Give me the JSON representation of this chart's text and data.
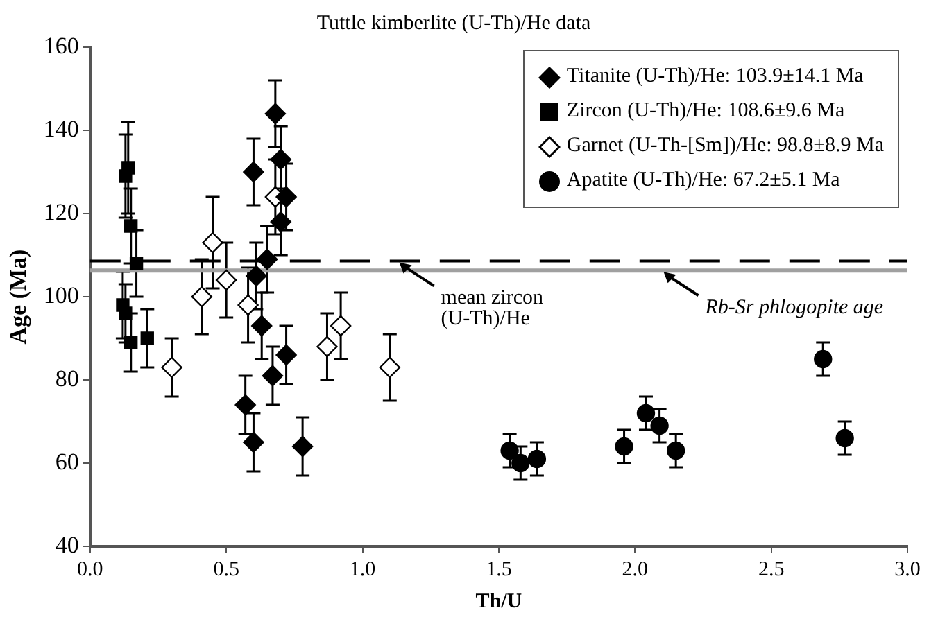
{
  "chart_data": {
    "type": "scatter",
    "title": "Tuttle kimberlite (U-Th)/He data",
    "xlabel": "Th/U",
    "ylabel": "Age (Ma)",
    "xlim": [
      0,
      3
    ],
    "xticks": [
      {
        "value": 0,
        "label": "0.0"
      },
      {
        "value": 0.5,
        "label": "0.5"
      },
      {
        "value": 1,
        "label": "1.0"
      },
      {
        "value": 1.5,
        "label": "1.5"
      },
      {
        "value": 2,
        "label": "2.0"
      },
      {
        "value": 2.5,
        "label": "2.5"
      },
      {
        "value": 3,
        "label": "3.0"
      }
    ],
    "ylim": [
      40,
      160
    ],
    "yticks": [
      40,
      60,
      80,
      100,
      120,
      140,
      160
    ],
    "grid": false,
    "legend": "top right",
    "series": [
      {
        "name": "Titanite (U-Th)/He: 103.9±14.1 Ma",
        "color": "#000000",
        "marker": "diamond",
        "x": [
          0.6,
          0.68,
          0.7,
          0.72,
          0.7,
          0.65,
          0.61,
          0.63,
          0.72,
          0.67,
          0.57,
          0.6,
          0.78
        ],
        "values": [
          130,
          144,
          133,
          124,
          118,
          109,
          105,
          93,
          86,
          81,
          74,
          65,
          64
        ],
        "errors": [
          8,
          8,
          8,
          8,
          8,
          8,
          8,
          8,
          7,
          7,
          7,
          7,
          7
        ]
      },
      {
        "name": "Zircon (U-Th)/He: 108.6±9.6 Ma",
        "color": "#000000",
        "marker": "square",
        "x": [
          0.13,
          0.14,
          0.15,
          0.17,
          0.12,
          0.13,
          0.15,
          0.21
        ],
        "values": [
          129,
          131,
          117,
          108,
          98,
          96,
          89,
          90
        ],
        "errors": [
          10,
          11,
          9,
          8,
          8,
          7,
          7,
          7
        ]
      },
      {
        "name": "Garnet (U-Th-[Sm])/He: 98.8±8.9 Ma",
        "color": "#ffffff",
        "marker": "diamond",
        "x": [
          0.3,
          0.41,
          0.45,
          0.5,
          0.58,
          0.68,
          0.87,
          0.92,
          1.1
        ],
        "values": [
          83,
          100,
          113,
          104,
          98,
          124,
          88,
          93,
          83
        ],
        "errors": [
          7,
          9,
          11,
          9,
          9,
          9,
          8,
          8,
          8
        ]
      },
      {
        "name": "Apatite (U-Th)/He: 67.2±5.1 Ma",
        "color": "#000000",
        "marker": "circle",
        "x": [
          1.54,
          1.58,
          1.64,
          1.96,
          2.04,
          2.09,
          2.15,
          2.69,
          2.77
        ],
        "values": [
          63,
          60,
          61,
          64,
          72,
          69,
          63,
          85,
          66
        ],
        "errors": [
          4,
          4,
          4,
          4,
          4,
          4,
          4,
          4,
          4
        ]
      }
    ],
    "ref_lines": [
      {
        "axis": "y",
        "value": 108.6,
        "color": "#000000",
        "line_style": "dashed"
      },
      {
        "axis": "y",
        "value": 106.3,
        "color": "#a0a0a0",
        "line_style": "solid"
      }
    ],
    "annotations": [
      {
        "text": "mean zircon\n(U-Th)/He",
        "x": 1.13,
        "y": 108.6
      },
      {
        "text": "Rb-Sr phlogopite age",
        "x": 2.1,
        "y": 106.3
      }
    ]
  }
}
